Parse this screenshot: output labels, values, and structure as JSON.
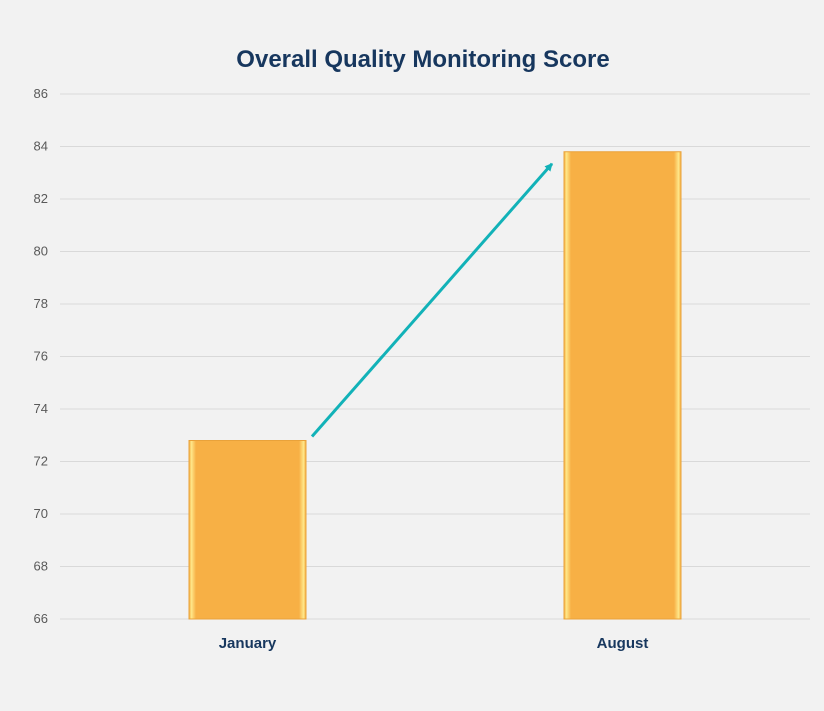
{
  "chart_data": {
    "type": "bar",
    "title": "Overall Quality Monitoring Score",
    "xlabel": "",
    "ylabel": "",
    "categories": [
      "January",
      "August"
    ],
    "values": [
      72.8,
      83.8
    ],
    "ylim": [
      66,
      86
    ],
    "yticks": [
      66,
      68,
      70,
      72,
      74,
      76,
      78,
      80,
      82,
      84,
      86
    ],
    "grid": true,
    "legend": "none",
    "annotations": [
      {
        "type": "arrow",
        "from_category": "January",
        "to_category": "August",
        "color": "#12b2b8"
      }
    ],
    "colors": {
      "bar": "#f7b045",
      "bar_highlight": "#ffe88a",
      "grid": "#d9d9d9",
      "title": "#17375e",
      "arrow": "#12b2b8"
    }
  }
}
